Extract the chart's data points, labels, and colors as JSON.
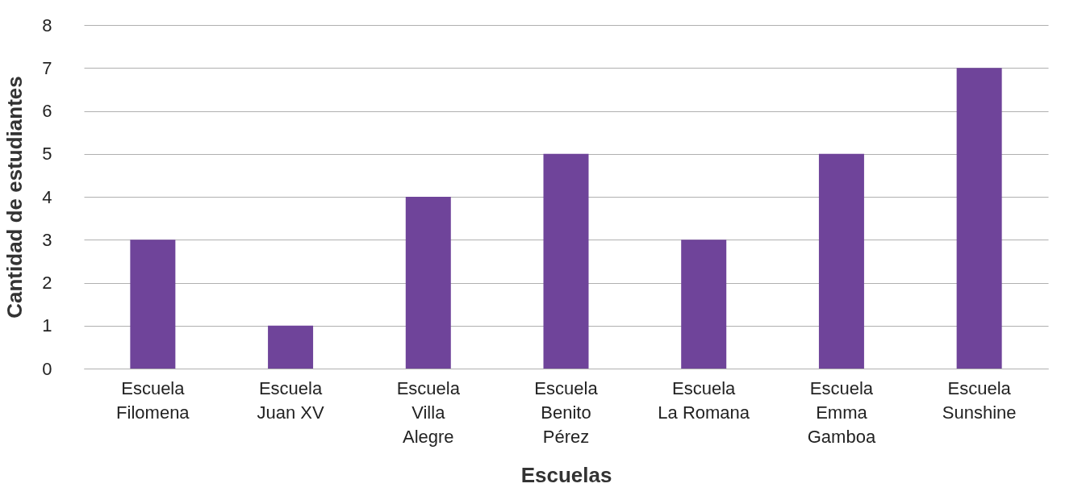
{
  "chart_data": {
    "type": "bar",
    "xlabel": "Escuelas",
    "ylabel": "Cantidad de estudiantes",
    "categories": [
      "Escuela\nFilomena",
      "Escuela\nJuan XV",
      "Escuela\nVilla\nAlegre",
      "Escuela\nBenito\nPérez",
      "Escuela\nLa Romana",
      "Escuela\nEmma\nGamboa",
      "Escuela\nSunshine"
    ],
    "values": [
      3,
      1,
      4,
      5,
      3,
      5,
      7
    ],
    "color": "#6f449a",
    "ylim": [
      0,
      8
    ],
    "yticks": [
      0,
      1,
      2,
      3,
      4,
      5,
      6,
      7,
      8
    ],
    "grid": "y"
  }
}
